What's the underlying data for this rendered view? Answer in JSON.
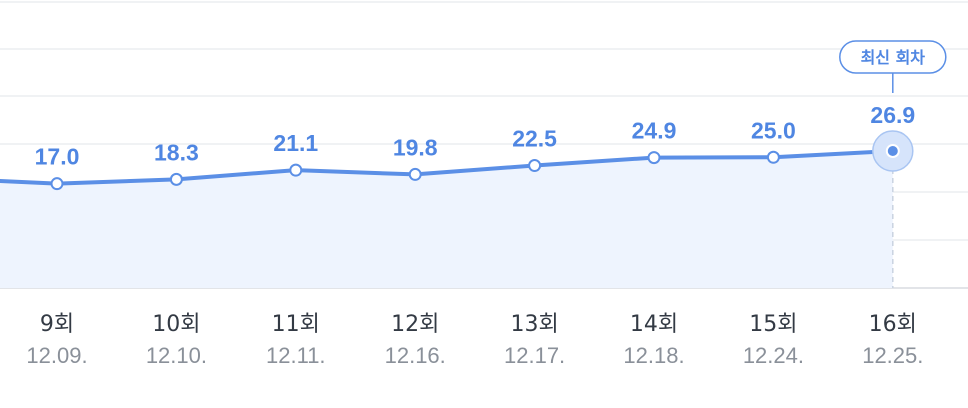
{
  "chart_data": {
    "type": "area",
    "categories": [
      "9회",
      "10회",
      "11회",
      "12회",
      "13회",
      "14회",
      "15회",
      "16회"
    ],
    "dates": [
      "12.09.",
      "12.10.",
      "12.11.",
      "12.16.",
      "12.17.",
      "12.18.",
      "12.24.",
      "12.25."
    ],
    "series": [
      {
        "values": [
          17.0,
          18.3,
          21.1,
          19.8,
          22.5,
          24.9,
          25.0,
          26.9
        ]
      }
    ],
    "value_labels": [
      "17.0",
      "18.3",
      "21.1",
      "19.8",
      "22.5",
      "24.9",
      "25.0",
      "26.9"
    ],
    "leading_value": 17.8,
    "grid": true,
    "highlight_index": 7,
    "colors": {
      "line": "#5b8fe6",
      "fill": "#eef4fe",
      "label": "#4f86e2"
    }
  },
  "badge": {
    "label": "최신 회차"
  }
}
